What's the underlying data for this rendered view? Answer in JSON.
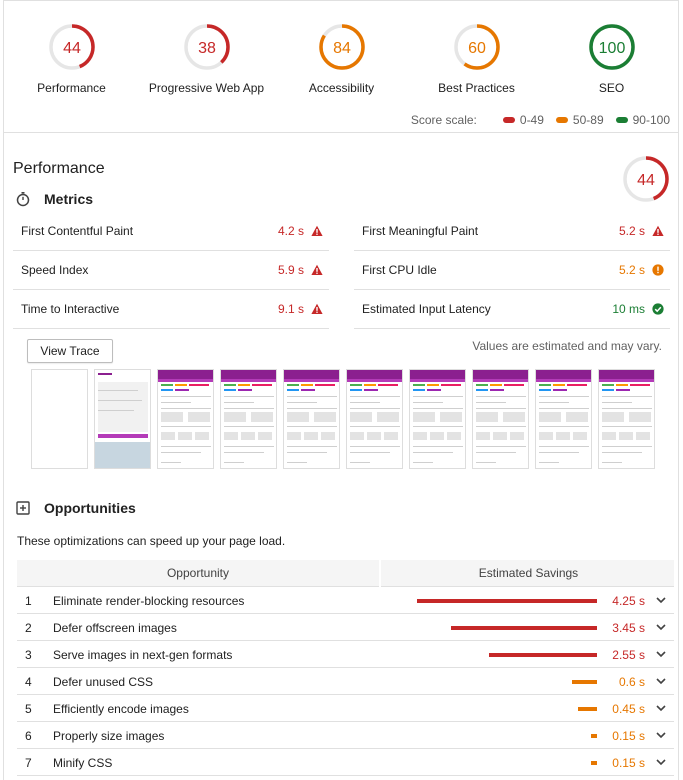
{
  "colors": {
    "fail": "#c62828",
    "average": "#e67700",
    "pass": "#1b7e34",
    "fail_bg": "#fdecec",
    "average_bg": "#fff3e0",
    "pass_bg": "#e6f4ea"
  },
  "gauges": [
    {
      "score": "44",
      "label": "Performance",
      "value": 44,
      "rating": "fail"
    },
    {
      "score": "38",
      "label": "Progressive Web App",
      "value": 38,
      "rating": "fail"
    },
    {
      "score": "84",
      "label": "Accessibility",
      "value": 84,
      "rating": "average"
    },
    {
      "score": "60",
      "label": "Best Practices",
      "value": 60,
      "rating": "average"
    },
    {
      "score": "100",
      "label": "SEO",
      "value": 100,
      "rating": "pass"
    }
  ],
  "score_scale": {
    "title": "Score scale:",
    "items": [
      {
        "label": "0-49",
        "rating": "fail"
      },
      {
        "label": "50-89",
        "rating": "average"
      },
      {
        "label": "90-100",
        "rating": "pass"
      }
    ]
  },
  "performance": {
    "title": "Performance",
    "score": "44",
    "value": 44,
    "rating": "fail",
    "metrics_title": "Metrics",
    "metrics": [
      {
        "label": "First Contentful Paint",
        "value": "4.2 s",
        "rating": "fail"
      },
      {
        "label": "First Meaningful Paint",
        "value": "5.2 s",
        "rating": "fail"
      },
      {
        "label": "Speed Index",
        "value": "5.9 s",
        "rating": "fail"
      },
      {
        "label": "First CPU Idle",
        "value": "5.2 s",
        "rating": "average"
      },
      {
        "label": "Time to Interactive",
        "value": "9.1 s",
        "rating": "fail"
      },
      {
        "label": "Estimated Input Latency",
        "value": "10 ms",
        "rating": "pass"
      }
    ],
    "view_trace_label": "View Trace",
    "estimated_note": "Values are estimated and may vary."
  },
  "opportunities": {
    "title": "Opportunities",
    "description": "These optimizations can speed up your page load.",
    "col_opportunity": "Opportunity",
    "col_savings": "Estimated Savings",
    "rows": [
      {
        "index": "1",
        "name": "Eliminate render-blocking resources",
        "savings": "4.25 s",
        "seconds": 4.25,
        "rating": "fail"
      },
      {
        "index": "2",
        "name": "Defer offscreen images",
        "savings": "3.45 s",
        "seconds": 3.45,
        "rating": "fail"
      },
      {
        "index": "3",
        "name": "Serve images in next-gen formats",
        "savings": "2.55 s",
        "seconds": 2.55,
        "rating": "fail"
      },
      {
        "index": "4",
        "name": "Defer unused CSS",
        "savings": "0.6 s",
        "seconds": 0.6,
        "rating": "average"
      },
      {
        "index": "5",
        "name": "Efficiently encode images",
        "savings": "0.45 s",
        "seconds": 0.45,
        "rating": "average"
      },
      {
        "index": "6",
        "name": "Properly size images",
        "savings": "0.15 s",
        "seconds": 0.15,
        "rating": "average"
      },
      {
        "index": "7",
        "name": "Minify CSS",
        "savings": "0.15 s",
        "seconds": 0.15,
        "rating": "average"
      }
    ]
  },
  "icons": {
    "metrics": "stopwatch-icon",
    "opportunities": "opportunity-icon",
    "fail": "warning-triangle-icon",
    "average": "info-circle-icon",
    "pass": "check-circle-icon",
    "expand": "chevron-down-icon"
  }
}
